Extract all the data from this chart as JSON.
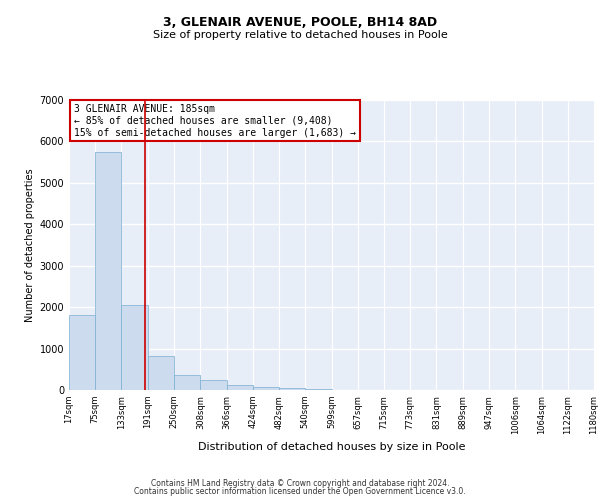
{
  "title_line1": "3, GLENAIR AVENUE, POOLE, BH14 8AD",
  "title_line2": "Size of property relative to detached houses in Poole",
  "xlabel": "Distribution of detached houses by size in Poole",
  "ylabel": "Number of detached properties",
  "bar_color": "#ccdcee",
  "bar_edge_color": "#7aaed0",
  "vline_color": "#cc0000",
  "vline_x": 185,
  "annotation_text": "3 GLENAIR AVENUE: 185sqm\n← 85% of detached houses are smaller (9,408)\n15% of semi-detached houses are larger (1,683) →",
  "annotation_box_facecolor": "#ffffff",
  "annotation_box_edgecolor": "#cc0000",
  "footnote_line1": "Contains HM Land Registry data © Crown copyright and database right 2024.",
  "footnote_line2": "Contains public sector information licensed under the Open Government Licence v3.0.",
  "bin_edges": [
    17,
    75,
    133,
    191,
    250,
    308,
    366,
    424,
    482,
    540,
    599,
    657,
    715,
    773,
    831,
    889,
    947,
    1006,
    1064,
    1122,
    1180
  ],
  "bin_labels": [
    "17sqm",
    "75sqm",
    "133sqm",
    "191sqm",
    "250sqm",
    "308sqm",
    "366sqm",
    "424sqm",
    "482sqm",
    "540sqm",
    "599sqm",
    "657sqm",
    "715sqm",
    "773sqm",
    "831sqm",
    "889sqm",
    "947sqm",
    "1006sqm",
    "1064sqm",
    "1122sqm",
    "1180sqm"
  ],
  "bar_heights": [
    1800,
    5750,
    2050,
    820,
    370,
    230,
    120,
    80,
    60,
    30,
    10,
    5,
    3,
    2,
    1,
    1,
    0,
    0,
    0,
    0
  ],
  "ylim": [
    0,
    7000
  ],
  "yticks": [
    0,
    1000,
    2000,
    3000,
    4000,
    5000,
    6000,
    7000
  ],
  "background_color": "#e8eef8",
  "grid_color": "#ffffff",
  "title1_fontsize": 9,
  "title2_fontsize": 8,
  "ylabel_fontsize": 7,
  "xlabel_fontsize": 8,
  "tick_fontsize": 6,
  "annotation_fontsize": 7,
  "footnote_fontsize": 5.5
}
